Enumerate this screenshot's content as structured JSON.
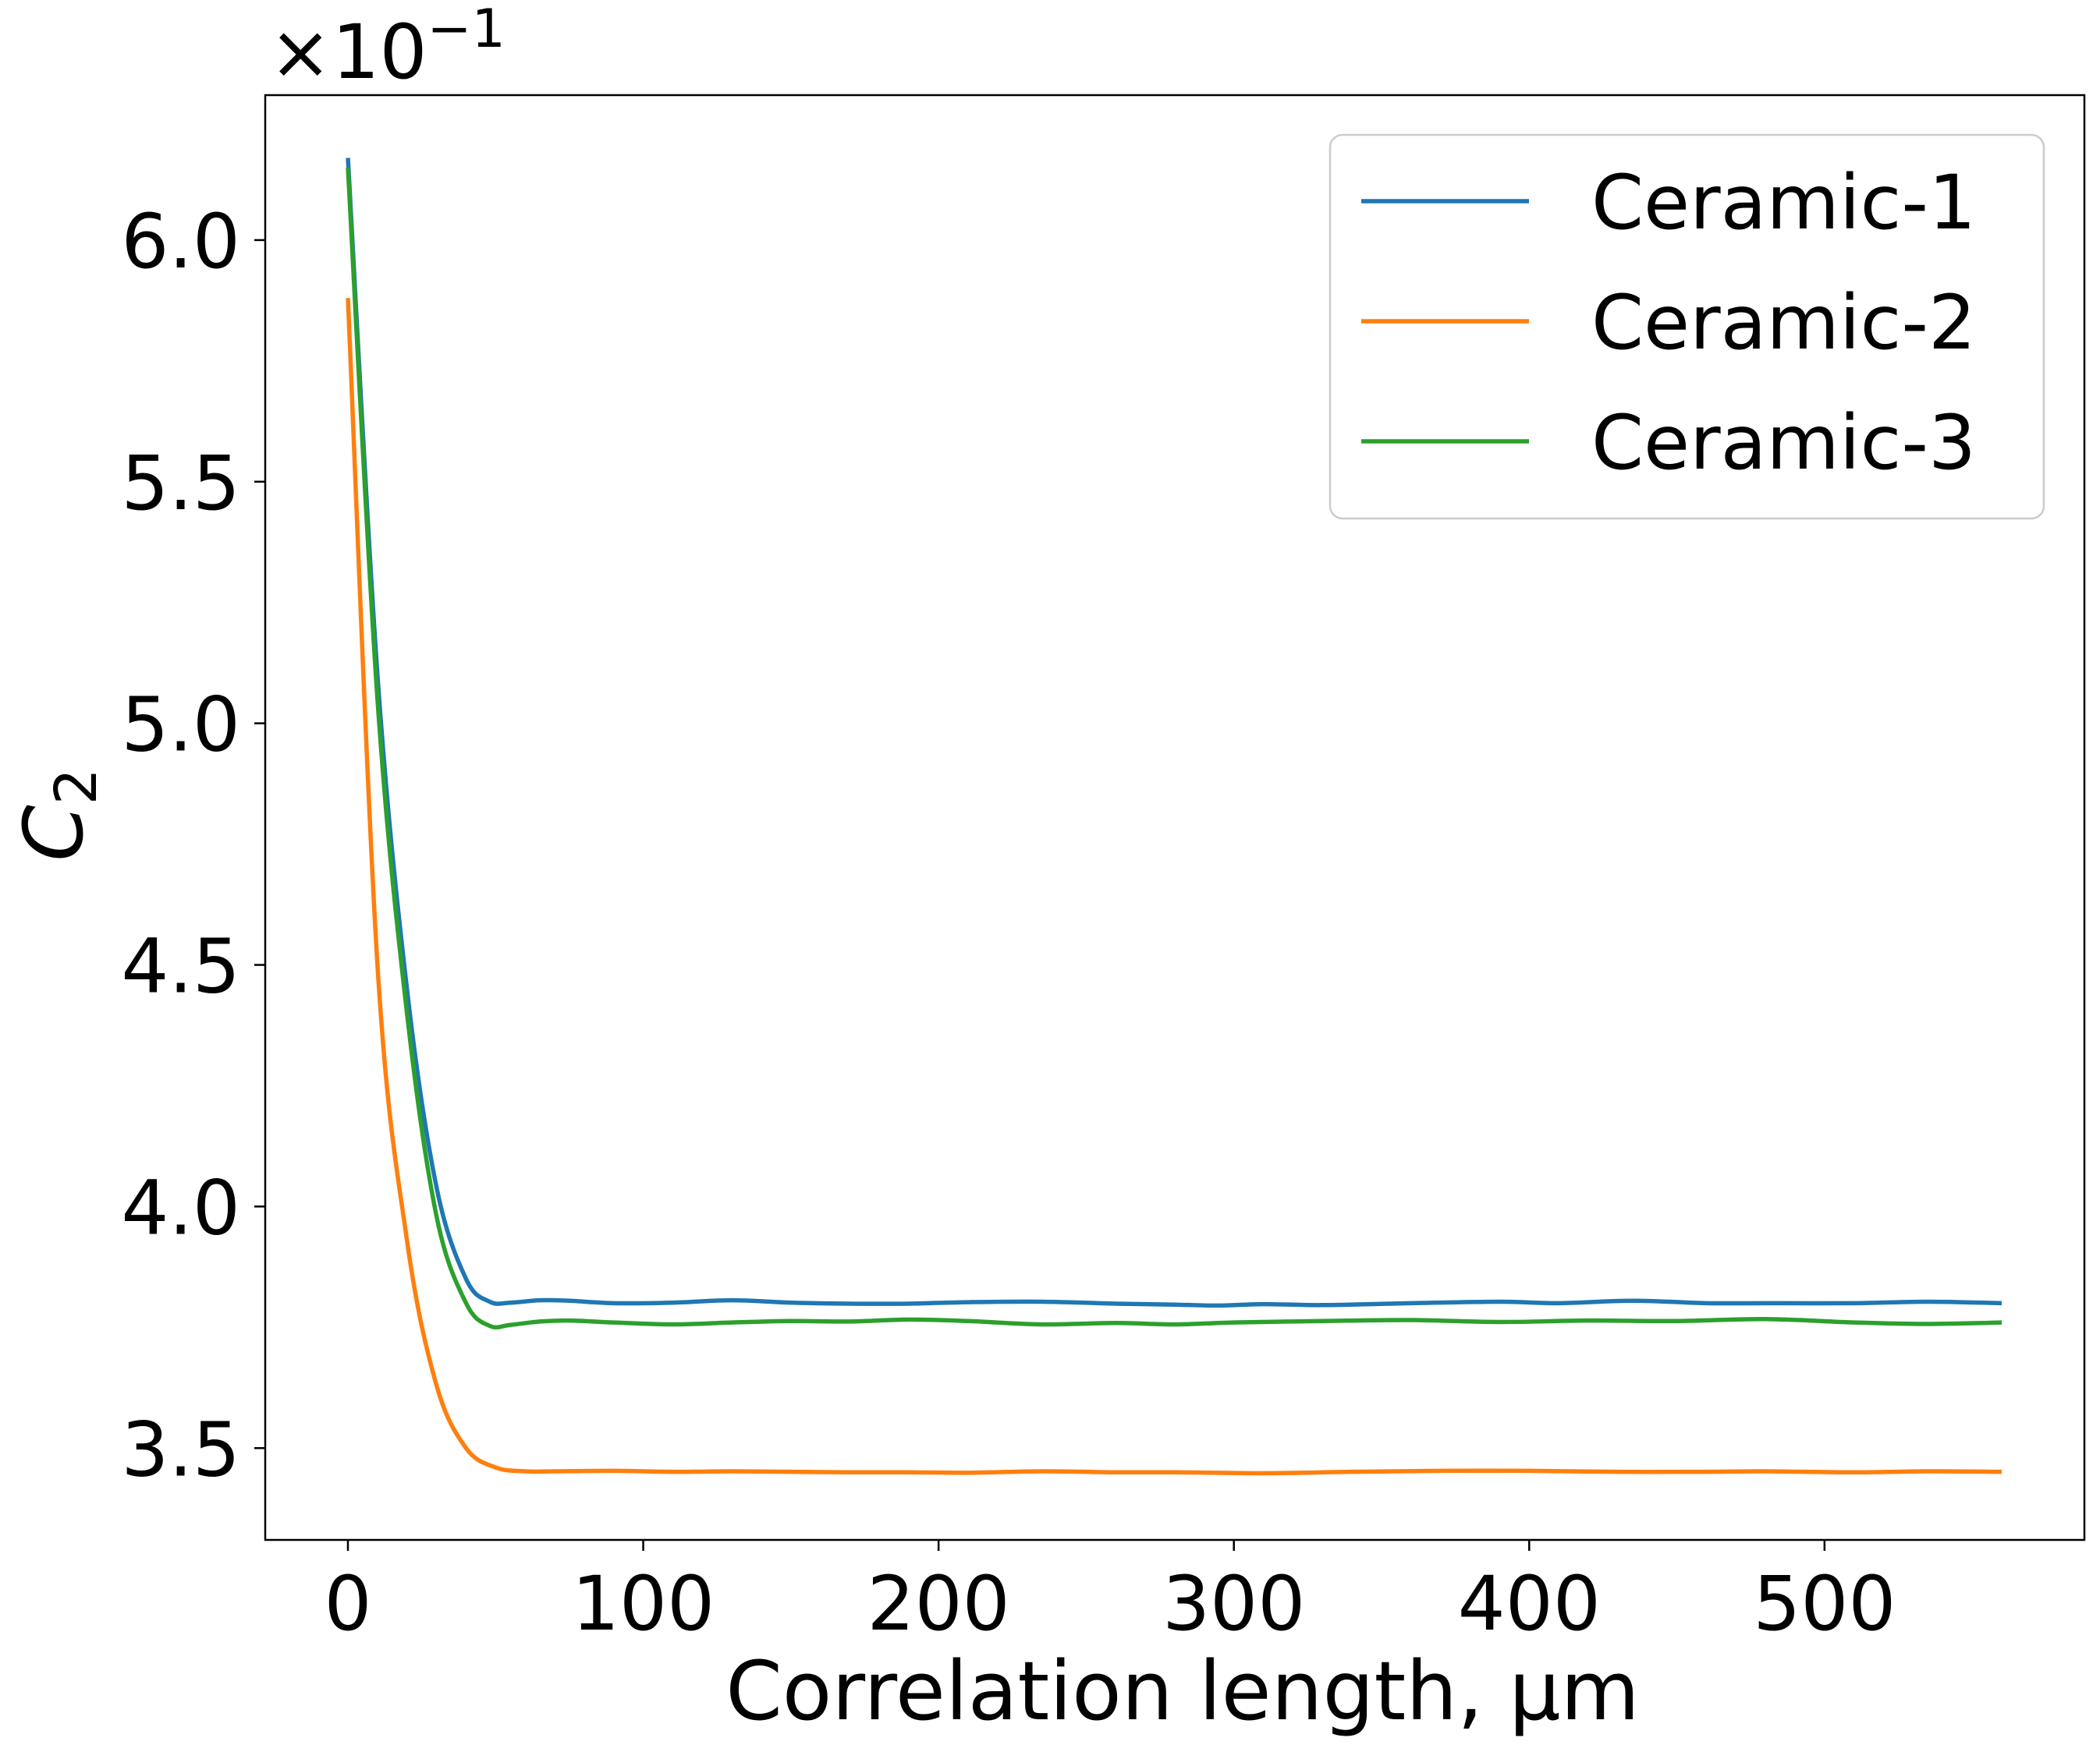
{
  "chart_data": {
    "type": "line",
    "xlabel": "Correlation length, μm",
    "ylabel_main": "C",
    "ylabel_sub": "2",
    "offset_text_base": "×10",
    "offset_text_exp": "−1",
    "xlim": [
      -28,
      588
    ],
    "ylim": [
      3.31,
      6.3
    ],
    "x_ticks": [
      0,
      100,
      200,
      300,
      400,
      500
    ],
    "x_tick_labels": [
      "0",
      "100",
      "200",
      "300",
      "400",
      "500"
    ],
    "y_ticks": [
      3.5,
      4.0,
      4.5,
      5.0,
      5.5,
      6.0
    ],
    "y_tick_labels": [
      "3.5",
      "4.0",
      "4.5",
      "5.0",
      "5.5",
      "6.0"
    ],
    "grid": false,
    "legend_position": "top-right",
    "series": [
      {
        "name": "Ceramic-1",
        "color": "#1f77b4",
        "x": [
          0,
          10,
          20,
          30,
          40,
          48,
          55,
          65,
          75,
          90,
          110,
          130,
          150,
          170,
          190,
          210,
          235,
          260,
          280,
          295,
          310,
          330,
          360,
          390,
          410,
          435,
          460,
          480,
          510,
          535,
          560
        ],
        "y": [
          6.17,
          5.1,
          4.45,
          4.04,
          3.85,
          3.803,
          3.801,
          3.806,
          3.805,
          3.8,
          3.801,
          3.806,
          3.801,
          3.799,
          3.799,
          3.802,
          3.803,
          3.799,
          3.797,
          3.795,
          3.798,
          3.796,
          3.8,
          3.803,
          3.8,
          3.805,
          3.8,
          3.8,
          3.8,
          3.803,
          3.8
        ]
      },
      {
        "name": "Ceramic-2",
        "color": "#ff7f0e",
        "x": [
          0,
          10,
          20,
          30,
          40,
          50,
          60,
          70,
          90,
          110,
          130,
          150,
          170,
          190,
          210,
          235,
          260,
          280,
          310,
          340,
          370,
          400,
          430,
          460,
          480,
          510,
          535,
          560
        ],
        "y": [
          5.88,
          4.5,
          3.93,
          3.63,
          3.5,
          3.46,
          3.452,
          3.452,
          3.453,
          3.451,
          3.452,
          3.451,
          3.45,
          3.45,
          3.449,
          3.452,
          3.45,
          3.45,
          3.448,
          3.451,
          3.453,
          3.453,
          3.451,
          3.451,
          3.452,
          3.45,
          3.452,
          3.451
        ]
      },
      {
        "name": "Ceramic-3",
        "color": "#2ca02c",
        "x": [
          0,
          10,
          20,
          30,
          40,
          48,
          55,
          65,
          75,
          90,
          110,
          130,
          150,
          170,
          190,
          210,
          235,
          260,
          280,
          300,
          330,
          360,
          390,
          420,
          450,
          480,
          510,
          535,
          560
        ],
        "y": [
          6.15,
          5.05,
          4.4,
          3.98,
          3.8,
          3.753,
          3.755,
          3.762,
          3.764,
          3.76,
          3.756,
          3.76,
          3.763,
          3.762,
          3.766,
          3.763,
          3.756,
          3.759,
          3.756,
          3.76,
          3.763,
          3.765,
          3.761,
          3.764,
          3.763,
          3.767,
          3.76,
          3.757,
          3.76
        ]
      }
    ]
  }
}
